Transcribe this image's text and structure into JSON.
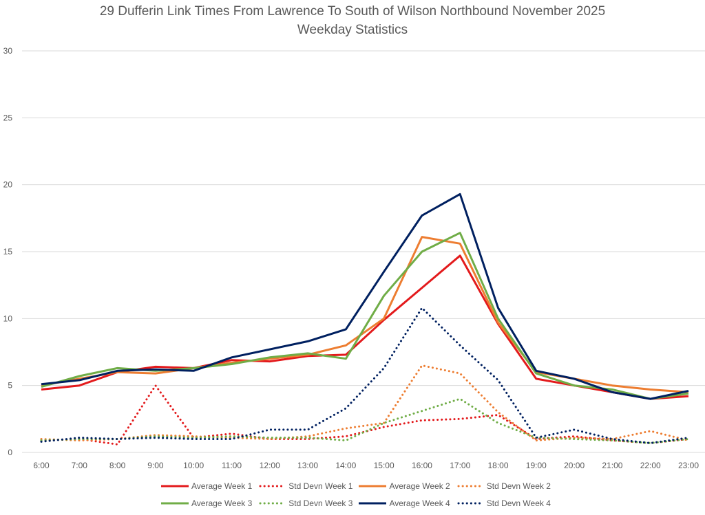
{
  "chart_data": {
    "type": "line",
    "title": "29 Dufferin Link Times From Lawrence To South of Wilson Northbound November 2025",
    "subtitle": "Weekday Statistics",
    "xlabel": "",
    "ylabel": "",
    "ylim": [
      0,
      30
    ],
    "yticks": [
      "0",
      "5",
      "10",
      "15",
      "20",
      "25",
      "30"
    ],
    "grid": true,
    "legend_position": "bottom",
    "categories": [
      "6:00",
      "7:00",
      "8:00",
      "9:00",
      "10:00",
      "11:00",
      "12:00",
      "13:00",
      "14:00",
      "15:00",
      "16:00",
      "17:00",
      "18:00",
      "19:00",
      "20:00",
      "21:00",
      "22:00",
      "23:00"
    ],
    "series": [
      {
        "name": "Average Week 1",
        "color": "#e31a1c",
        "style": "solid",
        "values": [
          4.7,
          5.0,
          6.0,
          6.4,
          6.3,
          6.9,
          6.8,
          7.2,
          7.3,
          9.9,
          12.3,
          14.7,
          9.6,
          5.5,
          5.0,
          4.5,
          4.0,
          4.2
        ]
      },
      {
        "name": "Std Devn Week 1",
        "color": "#e31a1c",
        "style": "dotted",
        "values": [
          0.9,
          1.0,
          0.6,
          5.0,
          1.1,
          1.4,
          1.0,
          1.0,
          1.2,
          1.9,
          2.4,
          2.5,
          2.8,
          1.0,
          1.2,
          0.9,
          0.7,
          1.0
        ]
      },
      {
        "name": "Average Week 2",
        "color": "#ed7d31",
        "style": "solid",
        "values": [
          5.0,
          5.5,
          6.0,
          5.9,
          6.3,
          6.7,
          7.0,
          7.3,
          8.0,
          10.0,
          16.1,
          15.6,
          9.7,
          6.0,
          5.5,
          5.0,
          4.7,
          4.5
        ]
      },
      {
        "name": "Std Devn Week 2",
        "color": "#ed7d31",
        "style": "dotted",
        "values": [
          1.0,
          0.9,
          1.0,
          1.3,
          1.2,
          1.1,
          1.0,
          1.2,
          1.8,
          2.2,
          6.5,
          5.9,
          3.0,
          0.9,
          1.1,
          1.0,
          1.6,
          0.9
        ]
      },
      {
        "name": "Average Week 3",
        "color": "#70ad47",
        "style": "solid",
        "values": [
          4.9,
          5.7,
          6.3,
          6.1,
          6.3,
          6.6,
          7.1,
          7.4,
          7.0,
          11.7,
          15.0,
          16.4,
          10.0,
          5.9,
          5.0,
          4.7,
          4.0,
          4.4
        ]
      },
      {
        "name": "Std Devn Week 3",
        "color": "#70ad47",
        "style": "dotted",
        "values": [
          0.9,
          1.0,
          1.0,
          1.2,
          1.1,
          1.2,
          1.1,
          1.1,
          0.9,
          2.2,
          3.1,
          4.0,
          2.2,
          1.1,
          1.0,
          0.9,
          0.7,
          1.0
        ]
      },
      {
        "name": "Average Week 4",
        "color": "#002060",
        "style": "solid",
        "values": [
          5.1,
          5.4,
          6.1,
          6.2,
          6.1,
          7.1,
          7.7,
          8.3,
          9.2,
          13.5,
          17.7,
          19.3,
          10.8,
          6.1,
          5.5,
          4.5,
          4.0,
          4.6
        ]
      },
      {
        "name": "Std Devn Week 4",
        "color": "#002060",
        "style": "dotted",
        "values": [
          0.8,
          1.1,
          1.0,
          1.1,
          1.0,
          1.0,
          1.7,
          1.7,
          3.3,
          6.3,
          10.8,
          8.0,
          5.4,
          1.1,
          1.7,
          1.0,
          0.7,
          1.1
        ]
      }
    ]
  },
  "colors": {
    "gridline": "#d9d9d9",
    "text": "#595959"
  }
}
